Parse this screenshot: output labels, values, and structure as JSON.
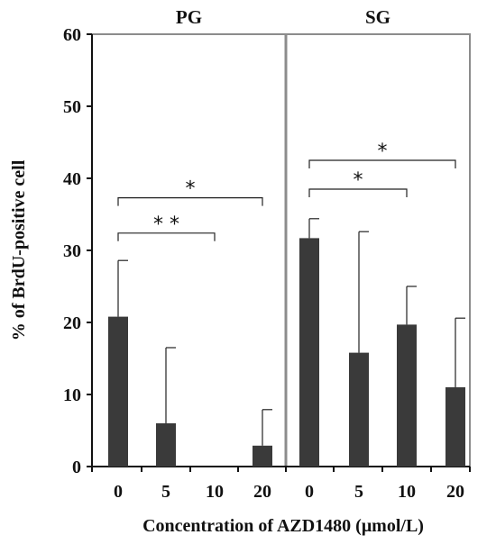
{
  "chart_data": {
    "type": "bar",
    "ylabel": "% of BrdU-positive cell",
    "xlabel": "Concentration of AZD1480 (μmol/L)",
    "ylim": [
      0,
      60
    ],
    "yticks": [
      "0",
      "10",
      "20",
      "30",
      "40",
      "50",
      "60"
    ],
    "grid": false,
    "bar_color": "#3a3a3a",
    "panels": [
      {
        "label": "PG",
        "categories": [
          "0",
          "5",
          "10",
          "20"
        ],
        "values": [
          20.8,
          6.0,
          0,
          2.9
        ],
        "error_upper": [
          28.6,
          16.5,
          0,
          7.9
        ],
        "significance": [
          {
            "from": "0",
            "to": "10",
            "label": "* *"
          },
          {
            "from": "0",
            "to": "20",
            "label": "*"
          }
        ]
      },
      {
        "label": "SG",
        "categories": [
          "0",
          "5",
          "10",
          "20"
        ],
        "values": [
          31.7,
          15.8,
          19.7,
          11.0
        ],
        "error_upper": [
          34.4,
          32.6,
          25.0,
          20.6
        ],
        "significance": [
          {
            "from": "0",
            "to": "10",
            "label": "*"
          },
          {
            "from": "0",
            "to": "20",
            "label": "*"
          }
        ]
      }
    ]
  }
}
